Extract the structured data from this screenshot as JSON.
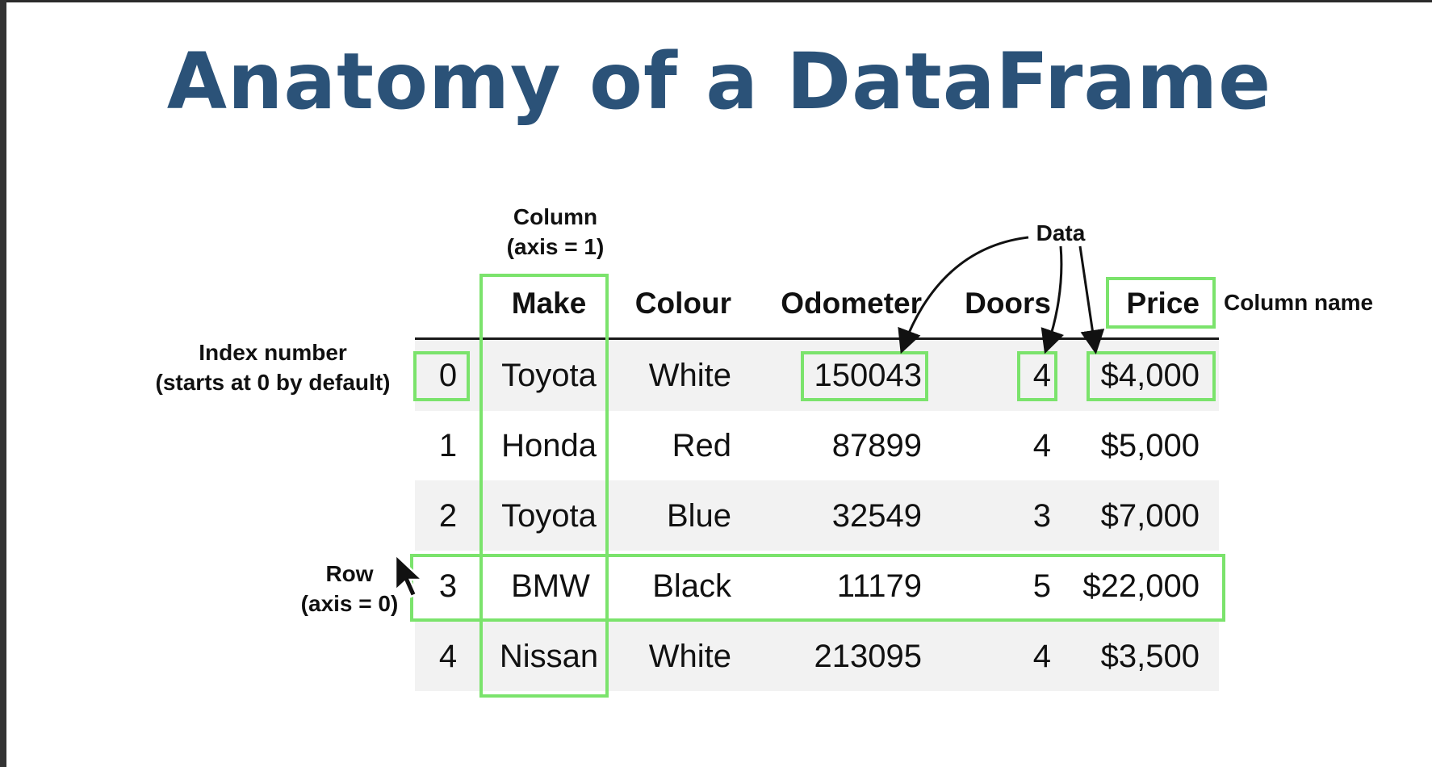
{
  "title": "Anatomy of a DataFrame",
  "annotations": {
    "column_axis_line1": "Column",
    "column_axis_line2": "(axis = 1)",
    "data": "Data",
    "column_name": "Column name",
    "index_line1": "Index number",
    "index_line2": "(starts at 0 by default)",
    "row_line1": "Row",
    "row_line2": "(axis = 0)"
  },
  "table": {
    "columns": [
      "Make",
      "Colour",
      "Odometer",
      "Doors",
      "Price"
    ],
    "rows": [
      {
        "index": "0",
        "cells": [
          "Toyota",
          "White",
          "150043",
          "4",
          "$4,000"
        ]
      },
      {
        "index": "1",
        "cells": [
          "Honda",
          "Red",
          "87899",
          "4",
          "$5,000"
        ]
      },
      {
        "index": "2",
        "cells": [
          "Toyota",
          "Blue",
          "32549",
          "3",
          "$7,000"
        ]
      },
      {
        "index": "3",
        "cells": [
          "BMW",
          "Black",
          "11179",
          "5",
          "$22,000"
        ]
      },
      {
        "index": "4",
        "cells": [
          "Nissan",
          "White",
          "213095",
          "4",
          "$3,500"
        ]
      }
    ]
  },
  "colors": {
    "title": "#2b5278",
    "highlight": "#7be36c",
    "stripe": "#f2f2f2"
  },
  "icons": [
    "mouse-cursor-icon",
    "arrow-icon"
  ]
}
